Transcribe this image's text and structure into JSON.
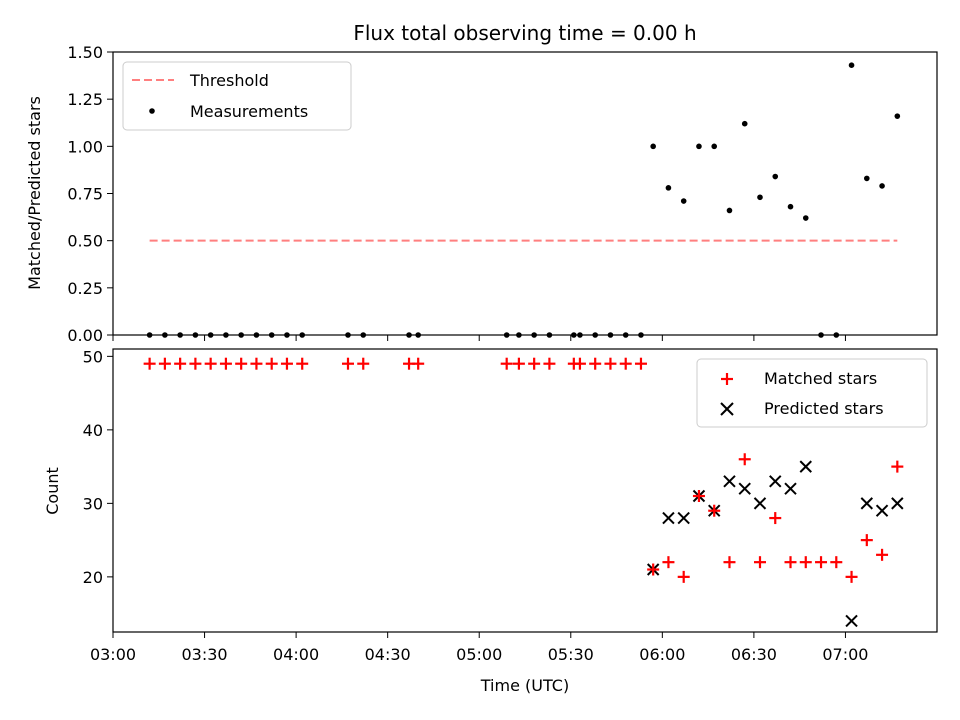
{
  "chart_data": [
    {
      "type": "scatter",
      "title": "Flux total observing time = 0.00 h",
      "ylabel": "Matched/Predicted stars",
      "ylim": [
        0,
        1.5
      ],
      "yticks": [
        "0.00",
        "0.25",
        "0.50",
        "0.75",
        "1.00",
        "1.25",
        "1.50"
      ],
      "xlim": [
        "03:00",
        "07:30"
      ],
      "legend_position": "top-left",
      "series": [
        {
          "name": "Threshold",
          "kind": "dashed-line",
          "color": "#ff7f7f",
          "x": [
            "03:12",
            "07:17"
          ],
          "y": [
            0.5,
            0.5
          ]
        },
        {
          "name": "Measurements",
          "kind": "points",
          "color": "#000000",
          "x": [
            "03:12",
            "03:17",
            "03:22",
            "03:27",
            "03:32",
            "03:37",
            "03:42",
            "03:47",
            "03:52",
            "03:57",
            "04:02",
            "04:17",
            "04:22",
            "04:37",
            "04:40",
            "05:09",
            "05:13",
            "05:18",
            "05:23",
            "05:31",
            "05:33",
            "05:38",
            "05:43",
            "05:48",
            "05:53",
            "05:57",
            "06:02",
            "06:07",
            "06:12",
            "06:17",
            "06:22",
            "06:27",
            "06:32",
            "06:37",
            "06:42",
            "06:47",
            "06:52",
            "06:57",
            "07:02",
            "07:07",
            "07:12",
            "07:17"
          ],
          "y": [
            0,
            0,
            0,
            0,
            0,
            0,
            0,
            0,
            0,
            0,
            0,
            0,
            0,
            0,
            0,
            0,
            0,
            0,
            0,
            0,
            0,
            0,
            0,
            0,
            0,
            1.0,
            0.78,
            0.71,
            1.0,
            1.0,
            0.66,
            1.12,
            0.73,
            0.84,
            0.68,
            0.62,
            0,
            0,
            1.43,
            0.83,
            0.79,
            1.16
          ]
        }
      ]
    },
    {
      "type": "scatter",
      "xlabel": "Time (UTC)",
      "ylabel": "Count",
      "ylim": [
        12.5,
        51
      ],
      "yticks": [
        "20",
        "30",
        "40",
        "50"
      ],
      "xlim": [
        "03:00",
        "07:30"
      ],
      "xticks": [
        "03:00",
        "03:30",
        "04:00",
        "04:30",
        "05:00",
        "05:30",
        "06:00",
        "06:30",
        "07:00"
      ],
      "legend_position": "top-right",
      "series": [
        {
          "name": "Matched stars",
          "marker": "+",
          "color": "#ff0000",
          "x": [
            "03:12",
            "03:17",
            "03:22",
            "03:27",
            "03:32",
            "03:37",
            "03:42",
            "03:47",
            "03:52",
            "03:57",
            "04:02",
            "04:17",
            "04:22",
            "04:37",
            "04:40",
            "05:09",
            "05:13",
            "05:18",
            "05:23",
            "05:31",
            "05:33",
            "05:38",
            "05:43",
            "05:48",
            "05:53",
            "05:57",
            "06:02",
            "06:07",
            "06:12",
            "06:17",
            "06:22",
            "06:27",
            "06:32",
            "06:37",
            "06:42",
            "06:47",
            "06:52",
            "06:57",
            "07:02",
            "07:07",
            "07:12",
            "07:17"
          ],
          "y": [
            49,
            49,
            49,
            49,
            49,
            49,
            49,
            49,
            49,
            49,
            49,
            49,
            49,
            49,
            49,
            49,
            49,
            49,
            49,
            49,
            49,
            49,
            49,
            49,
            49,
            21,
            22,
            20,
            31,
            29,
            22,
            36,
            22,
            28,
            22,
            22,
            22,
            22,
            20,
            25,
            23,
            35
          ]
        },
        {
          "name": "Predicted stars",
          "marker": "x",
          "color": "#000000",
          "x": [
            "05:57",
            "06:02",
            "06:07",
            "06:12",
            "06:17",
            "06:22",
            "06:27",
            "06:32",
            "06:37",
            "06:42",
            "06:47",
            "07:02",
            "07:07",
            "07:12",
            "07:17"
          ],
          "y": [
            21,
            28,
            28,
            31,
            29,
            33,
            32,
            30,
            33,
            32,
            35,
            14,
            30,
            29,
            30
          ]
        }
      ]
    }
  ]
}
